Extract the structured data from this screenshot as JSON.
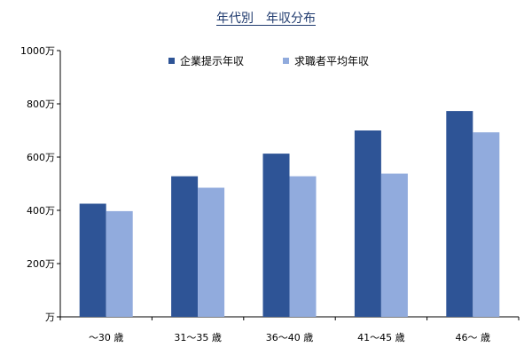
{
  "chart_data": {
    "type": "bar",
    "title": "年代別　年収分布",
    "categories": [
      "～30 歳",
      "31～35 歳",
      "36～40 歳",
      "41～45 歳",
      "46～ 歳"
    ],
    "series": [
      {
        "name": "企業提示年収",
        "color": "#2e5496",
        "values": [
          425,
          528,
          613,
          700,
          773
        ]
      },
      {
        "name": "求職者平均年収",
        "color": "#91abdd",
        "values": [
          397,
          485,
          528,
          538,
          693
        ]
      }
    ],
    "ylim": [
      0,
      1000
    ],
    "yticks": [
      {
        "value": 0,
        "label": "万"
      },
      {
        "value": 200,
        "label": "200万"
      },
      {
        "value": 400,
        "label": "400万"
      },
      {
        "value": 600,
        "label": "600万"
      },
      {
        "value": 800,
        "label": "800万"
      },
      {
        "value": 1000,
        "label": "1000万"
      }
    ],
    "grid": false,
    "legend_position": "top"
  }
}
